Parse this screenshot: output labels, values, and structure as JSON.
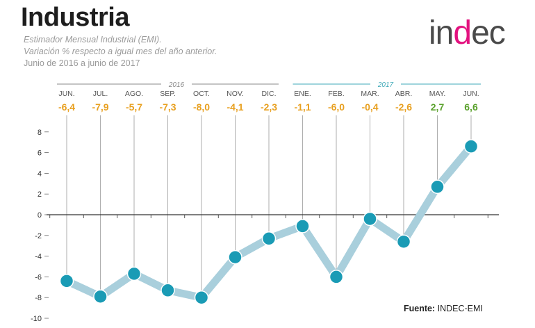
{
  "header": {
    "title": "Industria",
    "subtitle_1": "Estimador Mensual Industrial (EMI).",
    "subtitle_2": "Variación % respecto a igual mes del año anterior.",
    "subtitle_3": "Junio de 2016 a junio de 2017"
  },
  "logo": {
    "part1": "in",
    "part2": "d",
    "part3": "ec"
  },
  "source": {
    "label": "Fuente:",
    "value": "INDEC-EMI"
  },
  "colors": {
    "negative_label": "#e8a020",
    "positive_label": "#5aa12c",
    "line": "#a9cfdc",
    "marker": "#1a9bb5",
    "year_2016": "#888888",
    "year_2017": "#3fa9b8",
    "gridline": "#cccccc",
    "axis": "#333333"
  },
  "chart_data": {
    "type": "line",
    "years": [
      {
        "label": "2016",
        "from_index": 0,
        "to_index": 6
      },
      {
        "label": "2017",
        "from_index": 7,
        "to_index": 12
      }
    ],
    "categories": [
      "JUN.",
      "JUL.",
      "AGO.",
      "SEP.",
      "OCT.",
      "NOV.",
      "DIC.",
      "ENE.",
      "FEB.",
      "MAR.",
      "ABR.",
      "MAY.",
      "JUN."
    ],
    "values": [
      -6.4,
      -7.9,
      -5.7,
      -7.3,
      -8.0,
      -4.1,
      -2.3,
      -1.1,
      -6.0,
      -0.4,
      -2.6,
      2.7,
      6.6
    ],
    "value_labels": [
      "-6,4",
      "-7,9",
      "-5,7",
      "-7,3",
      "-8,0",
      "-4,1",
      "-2,3",
      "-1,1",
      "-6,0",
      "-0,4",
      "-2,6",
      "2,7",
      "6,6"
    ],
    "yticks": [
      "8",
      "6",
      "4",
      "2",
      "0",
      "-2",
      "-4",
      "-6",
      "-8",
      "-10"
    ],
    "ytick_values": [
      8,
      6,
      4,
      2,
      0,
      -2,
      -4,
      -6,
      -8,
      -10
    ],
    "ylim": [
      -10,
      8
    ],
    "grid": false
  }
}
